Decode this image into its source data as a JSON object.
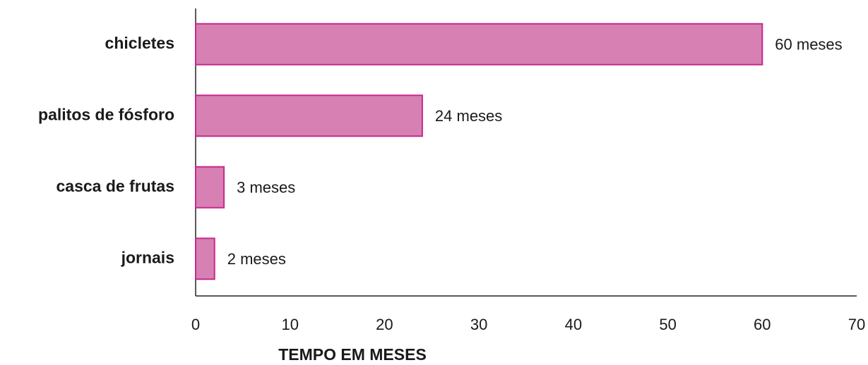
{
  "chart_data": {
    "type": "hbar",
    "x_label": "TEMPO EM MESES",
    "categories": [
      "chicletes",
      "palitos de fósforo",
      "casca de frutas",
      "jornais"
    ],
    "values": [
      60,
      24,
      3,
      2
    ],
    "value_labels": [
      "60 meses",
      "24 meses",
      "3 meses",
      "2 meses"
    ],
    "color": "#d780b4",
    "edge_color": "#c8288c",
    "xlim": [
      0,
      70
    ],
    "xticks": [
      0,
      10,
      20,
      30,
      40,
      50,
      60,
      70
    ],
    "grid": false
  }
}
